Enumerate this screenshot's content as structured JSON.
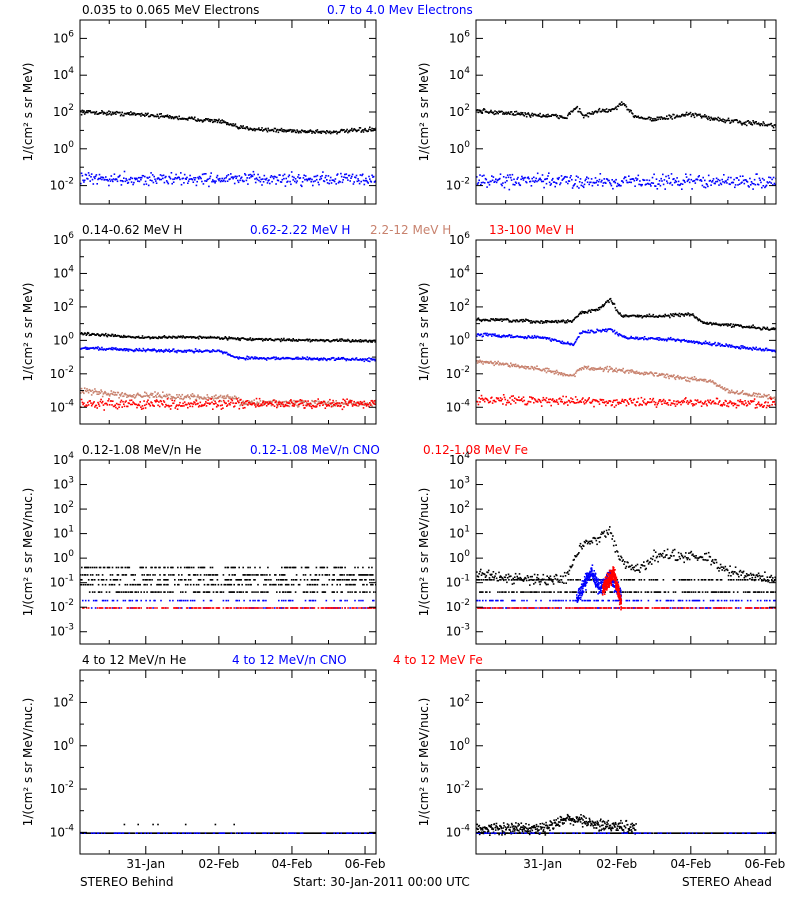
{
  "colors": {
    "black": "#000000",
    "blue": "#0000ff",
    "tan": "#c8826e",
    "red": "#ff0000"
  },
  "footer": {
    "left": "STEREO Behind",
    "center": "Start: 30-Jan-2011 00:00 UTC",
    "right": "STEREO Ahead"
  },
  "chart_data": {
    "type": "scatter",
    "x_range_days": [
      -0.8,
      7.3
    ],
    "x_axis": {
      "tick_days": [
        1,
        3,
        5,
        7
      ],
      "tick_labels": [
        "31-Jan",
        "02-Feb",
        "04-Feb",
        "06-Feb"
      ],
      "minor_tick_days": [
        0,
        2,
        4,
        6
      ]
    },
    "rows": [
      {
        "legend": [
          {
            "text": "0.035 to 0.065 MeV Electrons",
            "color": "#000000"
          },
          {
            "text": "0.7 to 4.0 Mev Electrons",
            "color": "#0000ff"
          }
        ],
        "ylabel": "1/(cm² s sr MeV)",
        "log_ylim": [
          -3,
          7
        ],
        "ticks": [
          -2,
          0,
          2,
          4,
          6
        ],
        "panels": [
          {
            "side": "STEREO Behind",
            "series": [
              {
                "color": "#000000",
                "profile": [
                  [
                    -0.8,
                    2.05
                  ],
                  [
                    1,
                    1.9
                  ],
                  [
                    2,
                    1.7
                  ],
                  [
                    3,
                    1.55
                  ],
                  [
                    3.5,
                    1.2
                  ],
                  [
                    4.5,
                    1.05
                  ],
                  [
                    6,
                    0.95
                  ],
                  [
                    7.3,
                    1.1
                  ]
                ],
                "jitter": 0.06
              },
              {
                "color": "#0000ff",
                "profile": [
                  [
                    -0.8,
                    -1.6
                  ],
                  [
                    7.3,
                    -1.6
                  ]
                ],
                "jitter": 0.18
              }
            ]
          },
          {
            "side": "STEREO Ahead",
            "series": [
              {
                "color": "#000000",
                "profile": [
                  [
                    -0.8,
                    2.1
                  ],
                  [
                    1,
                    1.85
                  ],
                  [
                    1.6,
                    1.75
                  ],
                  [
                    1.9,
                    2.3
                  ],
                  [
                    2.1,
                    1.8
                  ],
                  [
                    2.5,
                    2.1
                  ],
                  [
                    2.9,
                    2.15
                  ],
                  [
                    3.1,
                    2.5
                  ],
                  [
                    3.5,
                    1.8
                  ],
                  [
                    4,
                    1.65
                  ],
                  [
                    5,
                    1.9
                  ],
                  [
                    6,
                    1.55
                  ],
                  [
                    7.3,
                    1.3
                  ]
                ],
                "jitter": 0.07
              },
              {
                "color": "#0000ff",
                "profile": [
                  [
                    -0.8,
                    -1.7
                  ],
                  [
                    7.3,
                    -1.75
                  ]
                ],
                "jitter": 0.2
              }
            ]
          }
        ]
      },
      {
        "legend": [
          {
            "text": "0.14-0.62 MeV H",
            "color": "#000000"
          },
          {
            "text": "0.62-2.22 MeV H",
            "color": "#0000ff"
          },
          {
            "text": "2.2-12 MeV H",
            "color": "#c8826e"
          },
          {
            "text": "13-100 MeV H",
            "color": "#ff0000"
          }
        ],
        "ylabel": "1/(cm² s sr MeV)",
        "log_ylim": [
          -5,
          6
        ],
        "ticks": [
          -4,
          -2,
          0,
          2,
          4,
          6
        ],
        "panels": [
          {
            "side": "STEREO Behind",
            "series": [
              {
                "color": "#000000",
                "profile": [
                  [
                    -0.8,
                    0.45
                  ],
                  [
                    1,
                    0.2
                  ],
                  [
                    2,
                    0.25
                  ],
                  [
                    3,
                    0.2
                  ],
                  [
                    4,
                    0.1
                  ],
                  [
                    7.3,
                    0.0
                  ]
                ],
                "jitter": 0.04
              },
              {
                "color": "#0000ff",
                "profile": [
                  [
                    -0.8,
                    -0.4
                  ],
                  [
                    1,
                    -0.55
                  ],
                  [
                    3,
                    -0.6
                  ],
                  [
                    3.5,
                    -1.0
                  ],
                  [
                    7.3,
                    -1.1
                  ]
                ],
                "jitter": 0.05
              },
              {
                "color": "#c8826e",
                "profile": [
                  [
                    -0.8,
                    -3.0
                  ],
                  [
                    0.5,
                    -3.2
                  ],
                  [
                    1.5,
                    -3.3
                  ],
                  [
                    3.4,
                    -3.4
                  ],
                  [
                    3.6,
                    -3.7
                  ],
                  [
                    7.3,
                    -3.75
                  ]
                ],
                "jitter": 0.1
              },
              {
                "color": "#ff0000",
                "profile": [
                  [
                    -0.8,
                    -3.75
                  ],
                  [
                    7.3,
                    -3.75
                  ]
                ],
                "jitter": 0.15
              }
            ]
          },
          {
            "side": "STEREO Ahead",
            "series": [
              {
                "color": "#000000",
                "profile": [
                  [
                    -0.8,
                    1.3
                  ],
                  [
                    1,
                    1.15
                  ],
                  [
                    1.8,
                    1.2
                  ],
                  [
                    2,
                    1.7
                  ],
                  [
                    2.5,
                    1.9
                  ],
                  [
                    2.8,
                    2.5
                  ],
                  [
                    3.1,
                    1.5
                  ],
                  [
                    4,
                    1.5
                  ],
                  [
                    5,
                    1.6
                  ],
                  [
                    5.3,
                    1.1
                  ],
                  [
                    7.3,
                    0.7
                  ]
                ],
                "jitter": 0.05
              },
              {
                "color": "#0000ff",
                "profile": [
                  [
                    -0.8,
                    0.4
                  ],
                  [
                    1,
                    0.2
                  ],
                  [
                    1.8,
                    -0.2
                  ],
                  [
                    2.0,
                    0.5
                  ],
                  [
                    2.8,
                    0.7
                  ],
                  [
                    3.2,
                    0.2
                  ],
                  [
                    4.5,
                    0.1
                  ],
                  [
                    5.3,
                    -0.1
                  ],
                  [
                    7.3,
                    -0.6
                  ]
                ],
                "jitter": 0.05
              },
              {
                "color": "#c8826e",
                "profile": [
                  [
                    -0.8,
                    -1.2
                  ],
                  [
                    1,
                    -1.7
                  ],
                  [
                    1.8,
                    -2.1
                  ],
                  [
                    2.0,
                    -1.6
                  ],
                  [
                    3,
                    -1.7
                  ],
                  [
                    4,
                    -2.0
                  ],
                  [
                    5.5,
                    -2.4
                  ],
                  [
                    6,
                    -3.0
                  ],
                  [
                    7.3,
                    -3.4
                  ]
                ],
                "jitter": 0.07
              },
              {
                "color": "#ff0000",
                "profile": [
                  [
                    -0.8,
                    -3.5
                  ],
                  [
                    7.3,
                    -3.75
                  ]
                ],
                "jitter": 0.15
              }
            ]
          }
        ]
      },
      {
        "legend": [
          {
            "text": "0.12-1.08 MeV/n He",
            "color": "#000000"
          },
          {
            "text": "0.12-1.08 MeV/n CNO",
            "color": "#0000ff"
          },
          {
            "text": "0.12-1.08 MeV Fe",
            "color": "#ff0000"
          }
        ],
        "ylabel": "1/(cm² s sr MeV/nuc.)",
        "log_ylim": [
          -3.5,
          4
        ],
        "ticks": [
          -3,
          -2,
          -1,
          0,
          1,
          2,
          3,
          4
        ],
        "panels": [
          {
            "side": "STEREO Behind",
            "series": [
              {
                "color": "#000000",
                "levels": [
                  -0.35,
                  -0.65,
                  -0.85,
                  -1.05,
                  -1.35
                ],
                "sparse": 0.4
              },
              {
                "color": "#0000ff",
                "levels": [
                  -1.7,
                  -2.0
                ],
                "sparse": 0.25
              },
              {
                "color": "#ff0000",
                "levels": [
                  -2.0
                ],
                "sparse": 0.5
              }
            ]
          },
          {
            "side": "STEREO Ahead",
            "series": [
              {
                "color": "#000000",
                "profile": [
                  [
                    -0.8,
                    -0.6
                  ],
                  [
                    1,
                    -0.9
                  ],
                  [
                    1.6,
                    -0.8
                  ],
                  [
                    2.0,
                    0.5
                  ],
                  [
                    2.4,
                    0.8
                  ],
                  [
                    2.8,
                    1.1
                  ],
                  [
                    3.1,
                    -0.1
                  ],
                  [
                    3.6,
                    -0.4
                  ],
                  [
                    4,
                    0.1
                  ],
                  [
                    4.5,
                    0.15
                  ],
                  [
                    5.5,
                    0.0
                  ],
                  [
                    6,
                    -0.5
                  ],
                  [
                    7.3,
                    -0.9
                  ]
                ],
                "jitter": 0.12
              },
              {
                "color": "#000000",
                "levels": [
                  -0.85,
                  -1.35
                ],
                "sparse": 0.5
              },
              {
                "color": "#0000ff",
                "profile": [
                  [
                    1.9,
                    -1.6
                  ],
                  [
                    2.3,
                    -0.5
                  ],
                  [
                    2.5,
                    -1.2
                  ],
                  [
                    2.8,
                    -0.7
                  ],
                  [
                    3.1,
                    -1.5
                  ]
                ],
                "jitter": 0.15
              },
              {
                "color": "#0000ff",
                "levels": [
                  -1.7,
                  -2.0
                ],
                "sparse": 0.4
              },
              {
                "color": "#ff0000",
                "profile": [
                  [
                    2.6,
                    -1.2
                  ],
                  [
                    2.9,
                    -0.6
                  ],
                  [
                    3.1,
                    -1.8
                  ]
                ],
                "jitter": 0.15
              },
              {
                "color": "#ff0000",
                "levels": [
                  -2.0
                ],
                "sparse": 0.55
              }
            ]
          }
        ]
      },
      {
        "legend": [
          {
            "text": "4 to 12 MeV/n He",
            "color": "#000000"
          },
          {
            "text": "4 to 12 MeV/n CNO",
            "color": "#0000ff"
          },
          {
            "text": "4 to 12 MeV Fe",
            "color": "#ff0000"
          }
        ],
        "ylabel": "1/(cm² s sr MeV/nuc.)",
        "log_ylim": [
          -5,
          3.5
        ],
        "ticks": [
          -4,
          -2,
          0,
          2
        ],
        "panels": [
          {
            "side": "STEREO Behind",
            "series": [
              {
                "color": "#000000",
                "levels": [
                  -4.0
                ],
                "sparse": 0.97
              },
              {
                "color": "#0000ff",
                "levels": [
                  -4.0
                ],
                "sparse": 0.3
              },
              {
                "color": "#000000",
                "levels": [
                  -3.6,
                  -5.0
                ],
                "sparse": 0.02
              }
            ]
          },
          {
            "side": "STEREO Ahead",
            "series": [
              {
                "color": "#000000",
                "profile": [
                  [
                    -0.8,
                    -3.8
                  ],
                  [
                    1.0,
                    -3.8
                  ],
                  [
                    1.8,
                    -3.3
                  ],
                  [
                    2.5,
                    -3.6
                  ],
                  [
                    3.5,
                    -3.8
                  ]
                ],
                "jitter": 0.15
              },
              {
                "color": "#000000",
                "levels": [
                  -4.0
                ],
                "sparse": 0.97
              },
              {
                "color": "#0000ff",
                "levels": [
                  -4.0
                ],
                "sparse": 0.3
              },
              {
                "color": "#0000ff",
                "levels": [
                  -5.0
                ],
                "sparse": 0.2
              }
            ]
          }
        ]
      }
    ]
  }
}
